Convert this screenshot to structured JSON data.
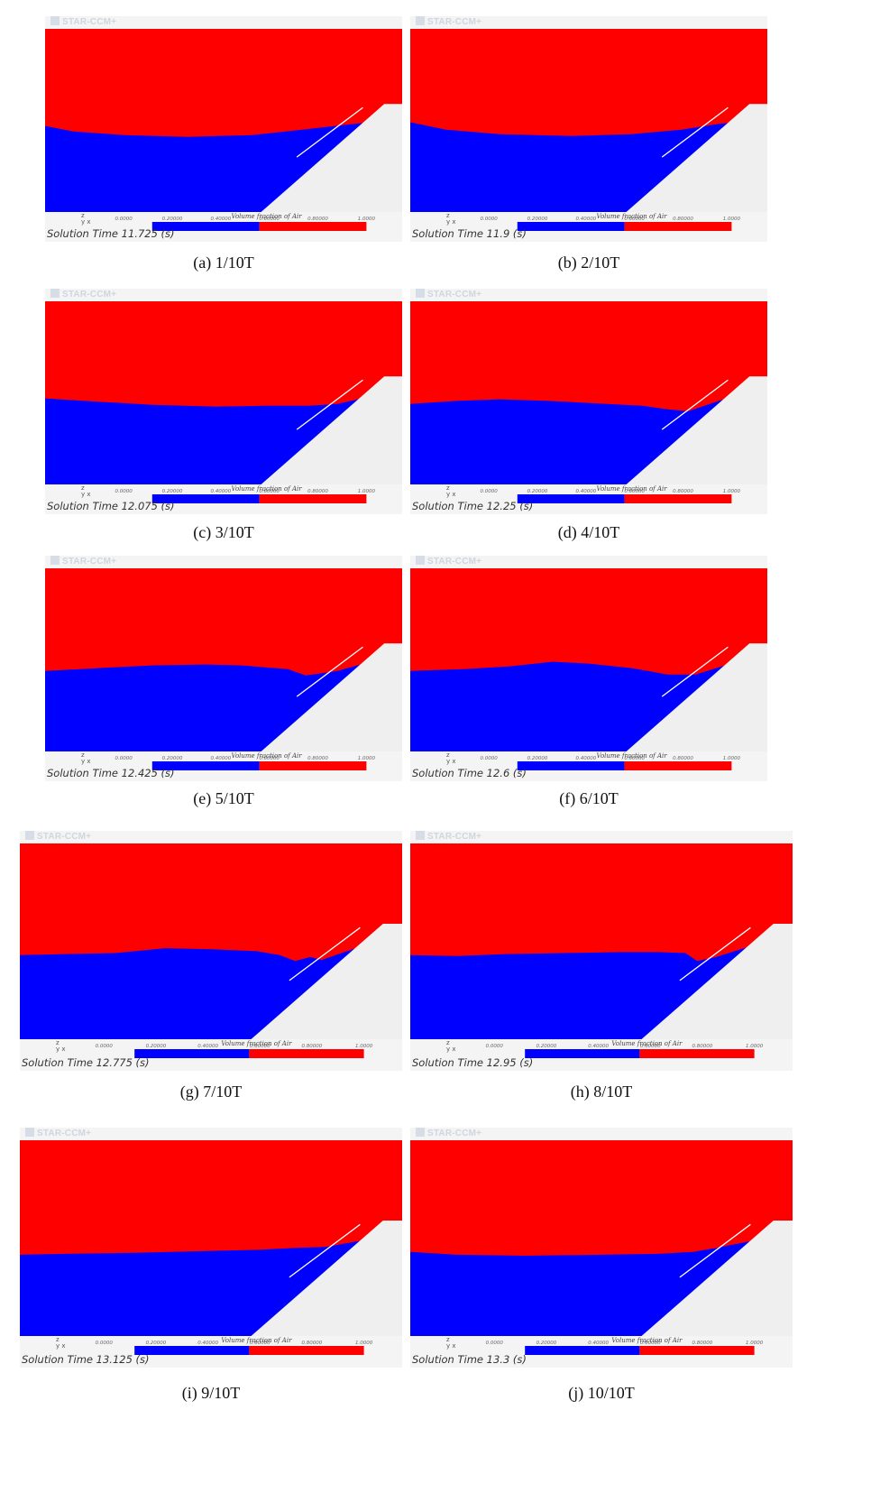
{
  "panels": [
    {
      "caption": "(a) 1/10T",
      "logo": "STAR-CCM+",
      "time": "Solution Time 11.725 (s)",
      "colorbar_title": "Volume fraction of Air",
      "colorbar_ticks": [
        "0.0000",
        "0.20000",
        "0.40000",
        "0.60000",
        "0.80000",
        "1.0000"
      ]
    },
    {
      "caption": "(b) 2/10T",
      "logo": "STAR-CCM+",
      "time": "Solution Time 11.9 (s)",
      "colorbar_title": "Volume fraction of Air",
      "colorbar_ticks": [
        "0.0000",
        "0.20000",
        "0.40000",
        "0.60000",
        "0.80000",
        "1.0000"
      ]
    },
    {
      "caption": "(c) 3/10T",
      "logo": "STAR-CCM+",
      "time": "Solution Time 12.075 (s)",
      "colorbar_title": "Volume fraction of Air",
      "colorbar_ticks": [
        "0.0000",
        "0.20000",
        "0.40000",
        "0.60000",
        "0.80000",
        "1.0000"
      ]
    },
    {
      "caption": "(d)  4/10T",
      "logo": "STAR-CCM+",
      "time": "Solution Time 12.25 (s)",
      "colorbar_title": "Volume fraction of Air",
      "colorbar_ticks": [
        "0.0000",
        "0.20000",
        "0.40000",
        "0.60000",
        "0.80000",
        "1.0000"
      ]
    },
    {
      "caption": "(e) 5/10T",
      "logo": "STAR-CCM+",
      "time": "Solution Time 12.425 (s)",
      "colorbar_title": "Volume fraction of Air",
      "colorbar_ticks": [
        "0.0000",
        "0.20000",
        "0.40000",
        "0.60000",
        "0.80000",
        "1.0000"
      ]
    },
    {
      "caption": "(f) 6/10T",
      "logo": "STAR-CCM+",
      "time": "Solution Time 12.6 (s)",
      "colorbar_title": "Volume fraction of Air",
      "colorbar_ticks": [
        "0.0000",
        "0.20000",
        "0.40000",
        "0.60000",
        "0.80000",
        "1.0000"
      ]
    },
    {
      "caption": "(g) 7/10T",
      "logo": "STAR-CCM+",
      "time": "Solution Time 12.775 (s)",
      "colorbar_title": "Volume fraction of Air",
      "colorbar_ticks": [
        "0.0000",
        "0.20000",
        "0.40000",
        "0.60000",
        "0.80000",
        "1.0000"
      ]
    },
    {
      "caption": "(h) 8/10T",
      "logo": "STAR-CCM+",
      "time": "Solution Time 12.95 (s)",
      "colorbar_title": "Volume fraction of Air",
      "colorbar_ticks": [
        "0.0000",
        "0.20000",
        "0.40000",
        "0.60000",
        "0.80000",
        "1.0000"
      ]
    },
    {
      "caption": "(i) 9/10T",
      "logo": "STAR-CCM+",
      "time": "Solution Time 13.125 (s)",
      "colorbar_title": "Volume fraction of Air",
      "colorbar_ticks": [
        "0.0000",
        "0.20000",
        "0.40000",
        "0.60000",
        "0.80000",
        "1.0000"
      ]
    },
    {
      "caption": "(j) 10/10T",
      "logo": "STAR-CCM+",
      "time": "Solution Time 13.3 (s)",
      "colorbar_title": "Volume fraction of Air",
      "colorbar_ticks": [
        "0.0000",
        "0.20000",
        "0.40000",
        "0.60000",
        "0.80000",
        "1.0000"
      ]
    }
  ],
  "colors": {
    "air": "#ff0000",
    "water": "#0000ff",
    "slope": "#efefef",
    "background": "#f4f4f4"
  }
}
